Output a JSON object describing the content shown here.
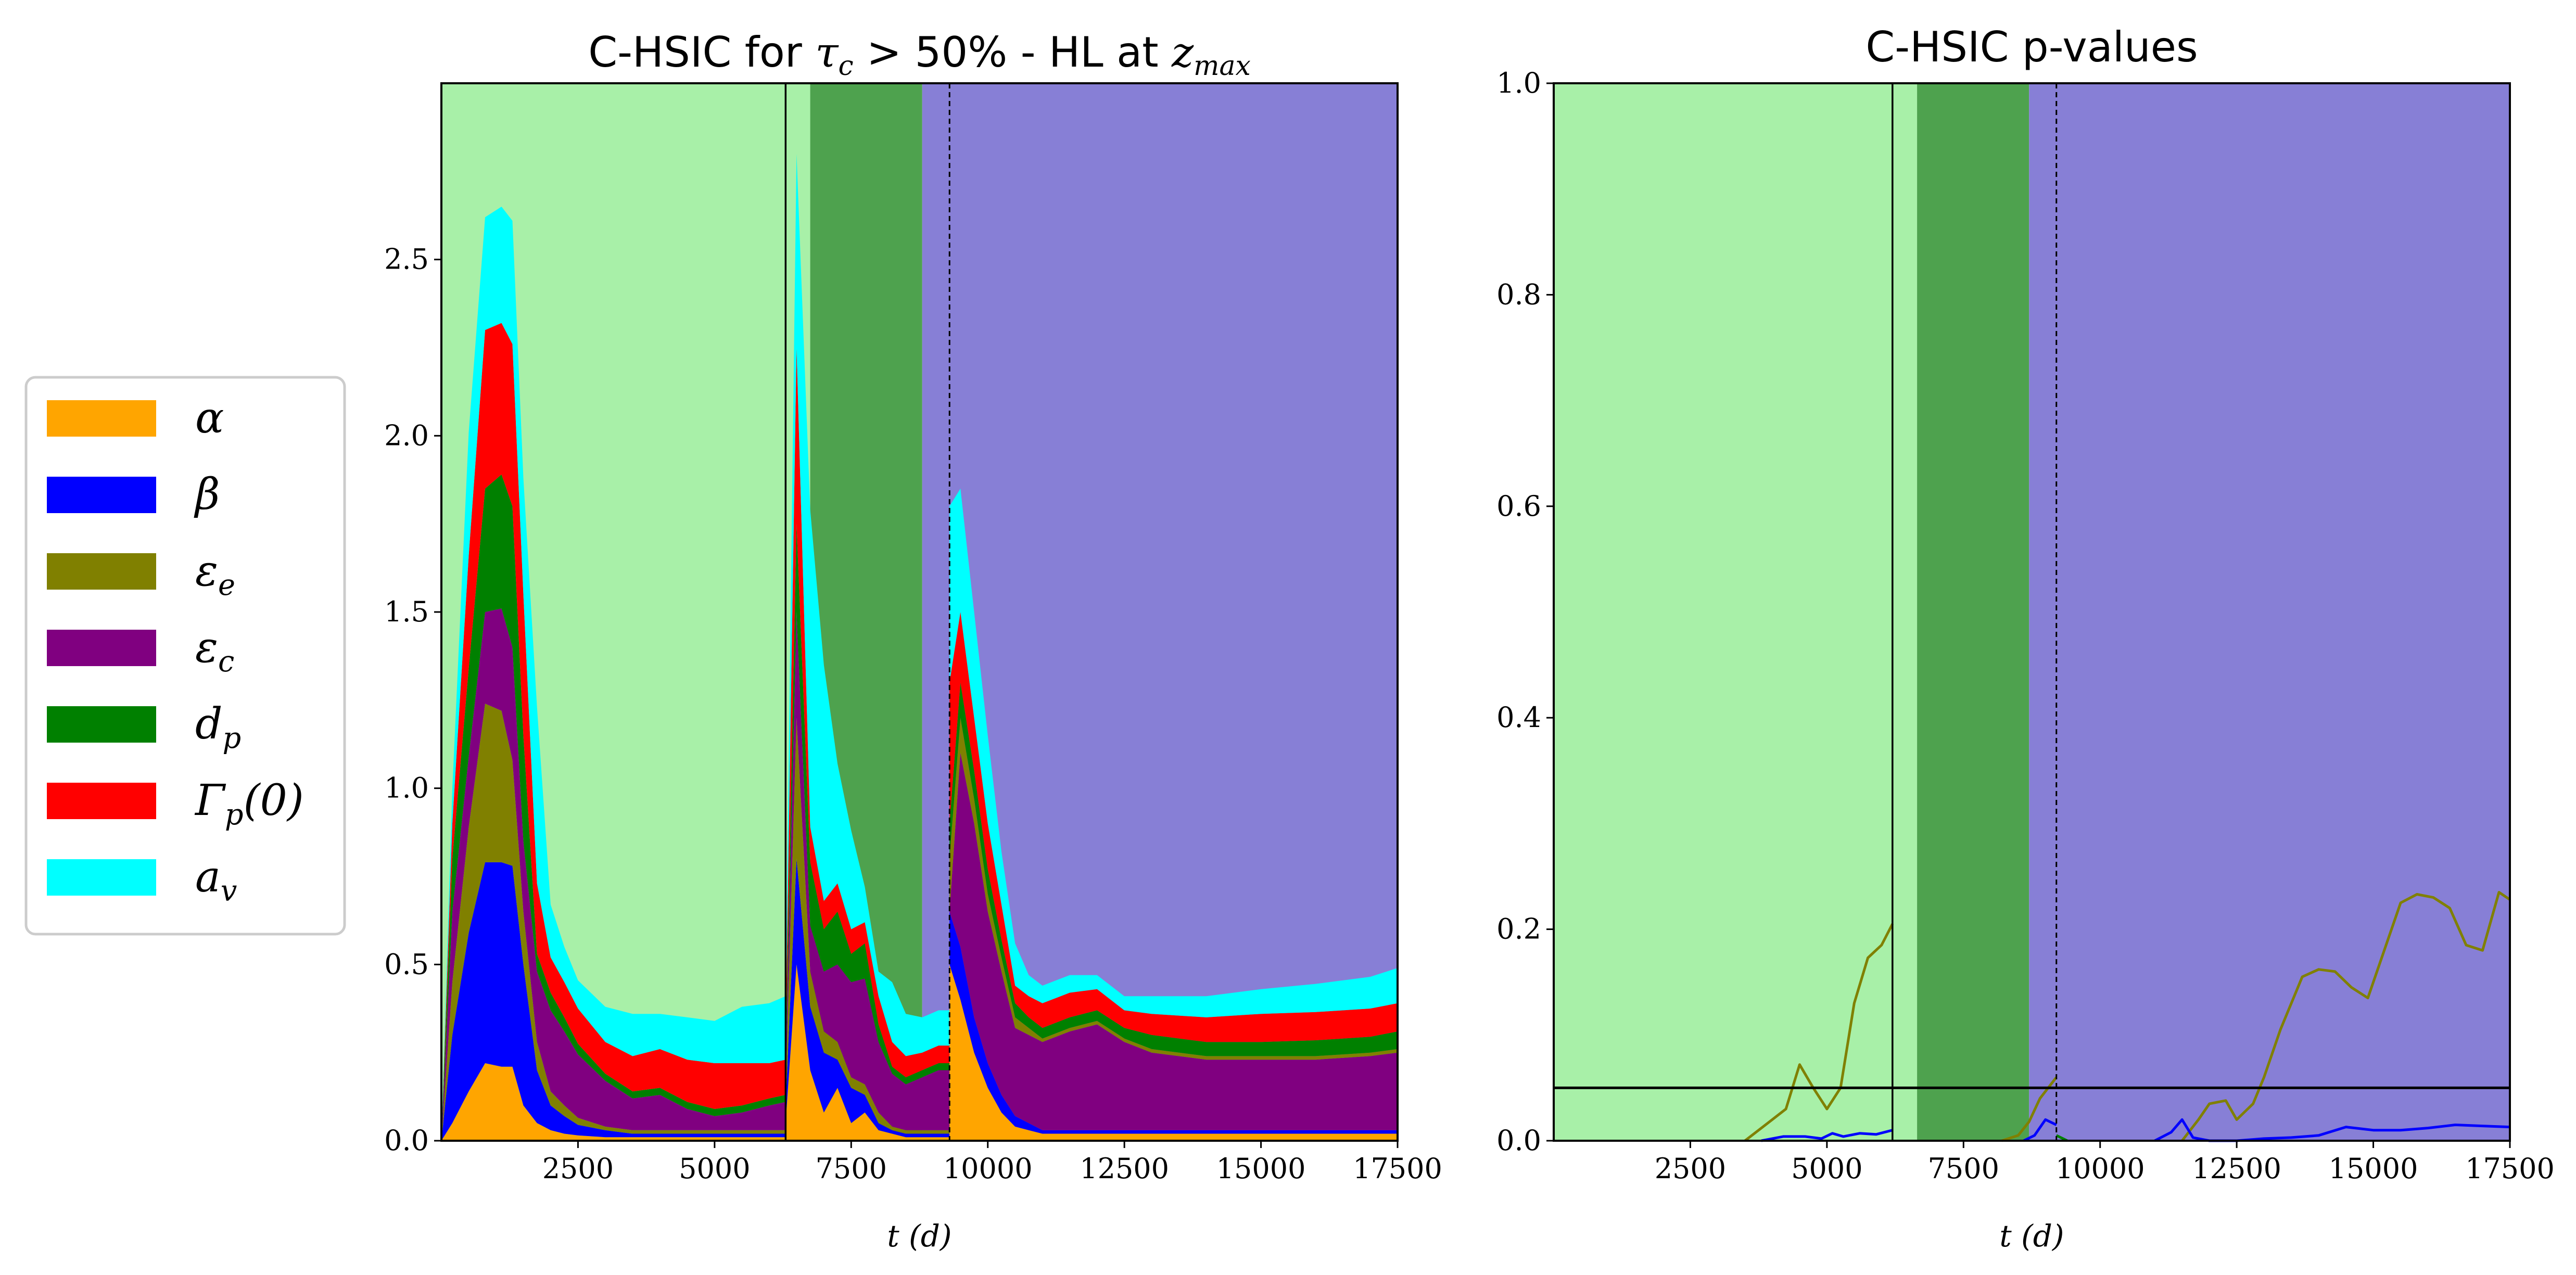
{
  "chart_data": [
    {
      "type": "area",
      "title": "C-HSIC for τ_c > 50% - HL at z_max",
      "xlabel": "t (d)",
      "ylabel": "",
      "xlim": [
        0,
        17500
      ],
      "ylim": [
        0,
        3.0
      ],
      "xticks": [
        "2500",
        "5000",
        "7500",
        "10000",
        "12500",
        "15000",
        "17500"
      ],
      "yticks": [
        "0.0",
        "0.5",
        "1.0",
        "1.5",
        "2.0",
        "2.5"
      ],
      "grid": false,
      "background_bands": [
        {
          "x0": 0,
          "x1": 6750,
          "color": "#a8f0a8"
        },
        {
          "x0": 6750,
          "x1": 8800,
          "color": "#4ea24e"
        },
        {
          "x0": 8800,
          "x1": 17500,
          "color": "#877fd6"
        }
      ],
      "vlines": [
        {
          "x": 6300,
          "style": "solid"
        },
        {
          "x": 9300,
          "style": "dashed"
        }
      ],
      "segments": [
        {
          "x": [
            0,
            200,
            500,
            800,
            1100,
            1300,
            1500,
            1750,
            2000,
            2250,
            2500,
            3000,
            3500,
            4000,
            4500,
            5000,
            5500,
            6000,
            6300
          ],
          "series": [
            {
              "name": "α",
              "color": "#ffa500",
              "values": [
                0.0,
                0.05,
                0.14,
                0.22,
                0.21,
                0.21,
                0.1,
                0.05,
                0.03,
                0.02,
                0.015,
                0.01,
                0.01,
                0.01,
                0.01,
                0.01,
                0.01,
                0.01,
                0.01
              ]
            },
            {
              "name": "β",
              "color": "#0000ff",
              "values": [
                0.0,
                0.25,
                0.45,
                0.57,
                0.58,
                0.57,
                0.4,
                0.15,
                0.07,
                0.05,
                0.03,
                0.02,
                0.01,
                0.01,
                0.01,
                0.01,
                0.01,
                0.01,
                0.01
              ]
            },
            {
              "name": "ε_e",
              "color": "#808000",
              "values": [
                0.0,
                0.15,
                0.3,
                0.45,
                0.43,
                0.3,
                0.15,
                0.08,
                0.04,
                0.03,
                0.02,
                0.01,
                0.01,
                0.01,
                0.01,
                0.01,
                0.01,
                0.01,
                0.01
              ]
            },
            {
              "name": "ε_c",
              "color": "#800080",
              "values": [
                0.0,
                0.2,
                0.2,
                0.26,
                0.29,
                0.32,
                0.2,
                0.2,
                0.23,
                0.21,
                0.18,
                0.13,
                0.09,
                0.1,
                0.06,
                0.04,
                0.05,
                0.07,
                0.08
              ]
            },
            {
              "name": "d_p",
              "color": "#008000",
              "values": [
                0.0,
                0.15,
                0.25,
                0.35,
                0.38,
                0.4,
                0.3,
                0.05,
                0.05,
                0.04,
                0.03,
                0.02,
                0.02,
                0.02,
                0.02,
                0.02,
                0.02,
                0.02,
                0.02
              ]
            },
            {
              "name": "Γ_p(0)",
              "color": "#ff0000",
              "values": [
                0.0,
                0.1,
                0.32,
                0.45,
                0.43,
                0.46,
                0.4,
                0.2,
                0.1,
                0.1,
                0.1,
                0.09,
                0.1,
                0.11,
                0.12,
                0.13,
                0.12,
                0.1,
                0.1
              ]
            },
            {
              "name": "a_v",
              "color": "#00ffff",
              "values": [
                0.0,
                0.1,
                0.35,
                0.32,
                0.33,
                0.35,
                0.33,
                0.5,
                0.15,
                0.1,
                0.08,
                0.1,
                0.12,
                0.1,
                0.12,
                0.12,
                0.16,
                0.17,
                0.18
              ]
            }
          ]
        },
        {
          "x": [
            6300,
            6500,
            6750,
            7000,
            7250,
            7500,
            7750,
            8000,
            8250,
            8500,
            8800,
            9100,
            9300
          ],
          "series": [
            {
              "name": "α",
              "color": "#ffa500",
              "values": [
                0.05,
                0.5,
                0.2,
                0.08,
                0.15,
                0.05,
                0.08,
                0.03,
                0.02,
                0.01,
                0.01,
                0.01,
                0.01
              ]
            },
            {
              "name": "β",
              "color": "#0000ff",
              "values": [
                0.05,
                0.3,
                0.18,
                0.17,
                0.08,
                0.1,
                0.05,
                0.02,
                0.01,
                0.01,
                0.01,
                0.01,
                0.01
              ]
            },
            {
              "name": "ε_e",
              "color": "#808000",
              "values": [
                0.05,
                0.4,
                0.1,
                0.06,
                0.05,
                0.03,
                0.03,
                0.03,
                0.01,
                0.01,
                0.01,
                0.01,
                0.01
              ]
            },
            {
              "name": "ε_c",
              "color": "#800080",
              "values": [
                0.05,
                0.3,
                0.13,
                0.17,
                0.22,
                0.27,
                0.3,
                0.2,
                0.15,
                0.13,
                0.15,
                0.17,
                0.17
              ]
            },
            {
              "name": "d_p",
              "color": "#008000",
              "values": [
                0.05,
                0.25,
                0.18,
                0.12,
                0.15,
                0.08,
                0.1,
                0.05,
                0.02,
                0.02,
                0.02,
                0.02,
                0.02
              ]
            },
            {
              "name": "Γ_p(0)",
              "color": "#ff0000",
              "values": [
                0.05,
                0.5,
                0.1,
                0.08,
                0.08,
                0.07,
                0.06,
                0.08,
                0.07,
                0.06,
                0.05,
                0.05,
                0.05
              ]
            },
            {
              "name": "a_v",
              "color": "#00ffff",
              "values": [
                0.1,
                0.55,
                0.9,
                0.67,
                0.34,
                0.28,
                0.1,
                0.07,
                0.17,
                0.12,
                0.1,
                0.1,
                0.1
              ]
            }
          ]
        },
        {
          "x": [
            9300,
            9500,
            9750,
            10000,
            10250,
            10500,
            10750,
            11000,
            11500,
            12000,
            12500,
            13000,
            14000,
            15000,
            16000,
            17000,
            17500
          ],
          "series": [
            {
              "name": "α",
              "color": "#ffa500",
              "values": [
                0.5,
                0.4,
                0.25,
                0.15,
                0.08,
                0.04,
                0.03,
                0.02,
                0.02,
                0.02,
                0.02,
                0.02,
                0.02,
                0.02,
                0.02,
                0.02,
                0.02
              ]
            },
            {
              "name": "β",
              "color": "#0000ff",
              "values": [
                0.15,
                0.15,
                0.1,
                0.07,
                0.05,
                0.03,
                0.02,
                0.01,
                0.01,
                0.01,
                0.01,
                0.01,
                0.01,
                0.01,
                0.01,
                0.01,
                0.01
              ]
            },
            {
              "name": "ε_c",
              "color": "#800080",
              "values": [
                0.0,
                0.55,
                0.55,
                0.43,
                0.35,
                0.25,
                0.25,
                0.25,
                0.28,
                0.3,
                0.25,
                0.22,
                0.2,
                0.2,
                0.2,
                0.21,
                0.22
              ]
            },
            {
              "name": "ε_e",
              "color": "#808000",
              "values": [
                0.15,
                0.1,
                0.07,
                0.05,
                0.04,
                0.03,
                0.02,
                0.01,
                0.01,
                0.01,
                0.01,
                0.01,
                0.01,
                0.01,
                0.01,
                0.01,
                0.01
              ]
            },
            {
              "name": "d_p",
              "color": "#008000",
              "values": [
                0.1,
                0.1,
                0.08,
                0.07,
                0.05,
                0.04,
                0.03,
                0.03,
                0.03,
                0.03,
                0.03,
                0.04,
                0.04,
                0.04,
                0.045,
                0.045,
                0.05
              ]
            },
            {
              "name": "Γ_p(0)",
              "color": "#ff0000",
              "values": [
                0.4,
                0.2,
                0.15,
                0.13,
                0.1,
                0.05,
                0.06,
                0.07,
                0.07,
                0.06,
                0.05,
                0.06,
                0.07,
                0.08,
                0.08,
                0.08,
                0.08
              ]
            },
            {
              "name": "a_v",
              "color": "#00ffff",
              "values": [
                0.5,
                0.35,
                0.3,
                0.25,
                0.15,
                0.12,
                0.06,
                0.05,
                0.05,
                0.04,
                0.04,
                0.05,
                0.06,
                0.07,
                0.08,
                0.09,
                0.1
              ]
            }
          ]
        }
      ],
      "legend": {
        "position": "left",
        "entries": [
          {
            "label": "α",
            "color": "#ffa500"
          },
          {
            "label": "β",
            "color": "#0000ff"
          },
          {
            "label": "ε_e",
            "color": "#808000"
          },
          {
            "label": "ε_c",
            "color": "#800080"
          },
          {
            "label": "d_p",
            "color": "#008000"
          },
          {
            "label": "Γ_p(0)",
            "color": "#ff0000"
          },
          {
            "label": "a_v",
            "color": "#00ffff"
          }
        ]
      }
    },
    {
      "type": "line",
      "title": "C-HSIC p-values",
      "xlabel": "t (d)",
      "ylabel": "",
      "xlim": [
        0,
        17500
      ],
      "ylim": [
        0,
        1.0
      ],
      "xticks": [
        "2500",
        "5000",
        "7500",
        "10000",
        "12500",
        "15000",
        "17500"
      ],
      "yticks": [
        "0.0",
        "0.2",
        "0.4",
        "0.6",
        "0.8",
        "1.0"
      ],
      "grid": false,
      "background_bands": [
        {
          "x0": 0,
          "x1": 6650,
          "color": "#a8f0a8"
        },
        {
          "x0": 6650,
          "x1": 8700,
          "color": "#4ea24e"
        },
        {
          "x0": 8700,
          "x1": 17500,
          "color": "#877fd6"
        }
      ],
      "vlines": [
        {
          "x": 6200,
          "style": "solid"
        },
        {
          "x": 9200,
          "style": "dashed"
        }
      ],
      "hline": 0.05,
      "segments": [
        {
          "series": [
            {
              "name": "ε_e",
              "color": "#808000",
              "x": [
                3500,
                4000,
                4250,
                4500,
                4750,
                5000,
                5250,
                5500,
                5750,
                6000,
                6200
              ],
              "values": [
                0.0,
                0.02,
                0.03,
                0.072,
                0.05,
                0.03,
                0.05,
                0.13,
                0.173,
                0.185,
                0.205
              ]
            },
            {
              "name": "β",
              "color": "#0000ff",
              "x": [
                3800,
                4200,
                4600,
                4900,
                5100,
                5300,
                5600,
                5900,
                6200
              ],
              "values": [
                0.0,
                0.004,
                0.004,
                0.002,
                0.007,
                0.004,
                0.007,
                0.006,
                0.01
              ]
            }
          ]
        },
        {
          "series": [
            {
              "name": "ε_e",
              "color": "#808000",
              "x": [
                8200,
                8500,
                8700,
                8900,
                9200
              ],
              "values": [
                0.0,
                0.005,
                0.018,
                0.04,
                0.06
              ]
            },
            {
              "name": "β",
              "color": "#0000ff",
              "x": [
                8600,
                8800,
                9000,
                9200
              ],
              "values": [
                0.0,
                0.005,
                0.02,
                0.015
              ]
            },
            {
              "name": "d_p",
              "color": "#008000",
              "x": [
                9200,
                9400
              ],
              "values": [
                0.005,
                0.0
              ]
            }
          ]
        },
        {
          "series": [
            {
              "name": "ε_e",
              "color": "#808000",
              "x": [
                11500,
                11800,
                12000,
                12300,
                12500,
                12800,
                13000,
                13300,
                13700,
                14000,
                14300,
                14600,
                14900,
                15200,
                15500,
                15800,
                16100,
                16400,
                16700,
                17000,
                17300,
                17500
              ],
              "values": [
                0.0,
                0.02,
                0.035,
                0.038,
                0.02,
                0.035,
                0.06,
                0.105,
                0.155,
                0.162,
                0.16,
                0.145,
                0.135,
                0.18,
                0.225,
                0.233,
                0.23,
                0.22,
                0.185,
                0.18,
                0.235,
                0.228
              ]
            },
            {
              "name": "β",
              "color": "#0000ff",
              "x": [
                11000,
                11300,
                11500,
                11700,
                12000,
                12500,
                13000,
                13500,
                14000,
                14500,
                15000,
                15500,
                16000,
                16500,
                17000,
                17500
              ],
              "values": [
                0.0,
                0.008,
                0.02,
                0.003,
                0.0,
                0.0,
                0.002,
                0.003,
                0.005,
                0.013,
                0.01,
                0.01,
                0.012,
                0.015,
                0.014,
                0.013
              ]
            }
          ]
        }
      ]
    }
  ]
}
